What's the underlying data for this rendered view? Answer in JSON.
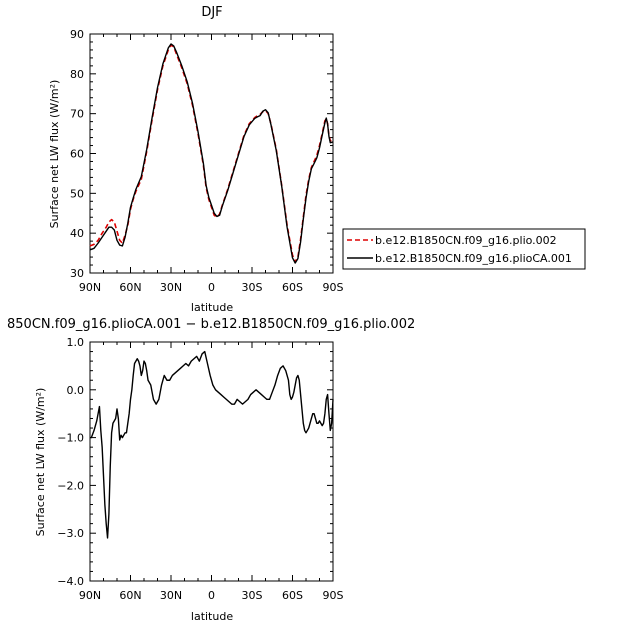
{
  "chart_data": [
    {
      "type": "line",
      "title": "DJF",
      "xlabel": "latitude",
      "ylabel": "Surface net LW flux (W/m²)",
      "xlim": [
        90,
        -90
      ],
      "ylim": [
        30,
        90
      ],
      "x_ticks": [
        {
          "value": 90,
          "label": "90N"
        },
        {
          "value": 60,
          "label": "60N"
        },
        {
          "value": 30,
          "label": "30N"
        },
        {
          "value": 0,
          "label": "0"
        },
        {
          "value": -30,
          "label": "30S"
        },
        {
          "value": -60,
          "label": "60S"
        },
        {
          "value": -90,
          "label": "90S"
        }
      ],
      "y_ticks": [
        {
          "value": 30,
          "label": "30"
        },
        {
          "value": 40,
          "label": "40"
        },
        {
          "value": 50,
          "label": "50"
        },
        {
          "value": 60,
          "label": "60"
        },
        {
          "value": 70,
          "label": "70"
        },
        {
          "value": 80,
          "label": "80"
        },
        {
          "value": 90,
          "label": "90"
        }
      ],
      "legend": "right",
      "series": [
        {
          "name": "b.e12.B1850CN.f09_g16.plio.002",
          "color": "#dd0000",
          "dash": "dashed",
          "x": [
            90,
            87,
            84,
            81,
            78,
            76,
            74,
            72,
            70,
            68,
            66,
            64,
            62,
            60,
            58,
            56,
            52,
            48,
            44,
            40,
            36,
            32,
            30,
            28,
            26,
            22,
            18,
            14,
            10,
            6,
            4,
            2,
            0,
            -2,
            -4,
            -6,
            -8,
            -12,
            -16,
            -20,
            -24,
            -28,
            -32,
            -34,
            -36,
            -38,
            -40,
            -42,
            -44,
            -48,
            -52,
            -56,
            -60,
            -62,
            -64,
            -66,
            -68,
            -70,
            -72,
            -74,
            -76,
            -78,
            -80,
            -82,
            -84,
            -85,
            -86,
            -87,
            -88,
            -90
          ],
          "y": [
            36.8,
            37.2,
            38.2,
            40.0,
            41.5,
            42.8,
            43.4,
            42.8,
            40.5,
            38.2,
            37.5,
            39.5,
            42.0,
            46.0,
            48.5,
            50.5,
            53.5,
            60.5,
            68.5,
            76.0,
            82.0,
            86.0,
            87.2,
            86.8,
            85.0,
            81.5,
            77.5,
            72.0,
            65.0,
            57.0,
            51.5,
            48.5,
            46.5,
            44.5,
            44.0,
            44.8,
            47.0,
            51.0,
            55.5,
            60.0,
            64.5,
            67.5,
            69.0,
            69.5,
            69.8,
            70.5,
            70.8,
            70.0,
            67.5,
            61.0,
            52.0,
            42.0,
            34.5,
            32.8,
            34.0,
            38.5,
            44.0,
            49.5,
            53.5,
            56.5,
            58.0,
            59.5,
            62.0,
            65.0,
            68.2,
            68.7,
            67.5,
            64.5,
            63.2,
            63.0
          ]
        },
        {
          "name": "b.e12.B1850CN.f09_g16.plioCA.001",
          "color": "#000000",
          "dash": "solid",
          "x": [
            90,
            87,
            84,
            81,
            78,
            76,
            74,
            72,
            70,
            68,
            66,
            64,
            62,
            60,
            58,
            56,
            52,
            48,
            44,
            40,
            36,
            32,
            30,
            28,
            26,
            22,
            18,
            14,
            10,
            6,
            4,
            2,
            0,
            -2,
            -4,
            -6,
            -8,
            -12,
            -16,
            -20,
            -24,
            -28,
            -32,
            -34,
            -36,
            -38,
            -40,
            -42,
            -44,
            -48,
            -52,
            -56,
            -60,
            -62,
            -64,
            -66,
            -68,
            -70,
            -72,
            -74,
            -76,
            -78,
            -80,
            -82,
            -84,
            -85,
            -86,
            -87,
            -88,
            -90
          ],
          "y": [
            35.8,
            36.2,
            37.5,
            39.0,
            40.5,
            41.5,
            41.5,
            40.8,
            38.2,
            37.0,
            36.8,
            39.0,
            42.5,
            46.5,
            48.8,
            51.0,
            54.2,
            61.0,
            69.0,
            76.5,
            82.5,
            86.5,
            87.5,
            87.0,
            85.5,
            82.0,
            78.0,
            72.5,
            65.5,
            57.5,
            52.0,
            49.0,
            47.0,
            45.0,
            44.2,
            44.5,
            46.8,
            50.7,
            55.2,
            59.7,
            64.2,
            67.2,
            68.8,
            69.2,
            69.5,
            70.6,
            71.0,
            70.2,
            67.3,
            60.7,
            51.8,
            41.5,
            33.8,
            32.5,
            33.6,
            37.8,
            43.5,
            48.8,
            53.0,
            56.2,
            57.5,
            58.9,
            61.4,
            64.6,
            67.7,
            68.9,
            67.4,
            64.3,
            62.7,
            62.9
          ]
        }
      ]
    },
    {
      "type": "line",
      "title": "850CN.f09_g16.plioCA.001 − b.e12.B1850CN.f09_g16.plio.002",
      "xlabel": "latitude",
      "ylabel": "Surface net LW flux (W/m²)",
      "xlim": [
        90,
        -90
      ],
      "ylim": [
        -4.0,
        1.0
      ],
      "x_ticks": [
        {
          "value": 90,
          "label": "90N"
        },
        {
          "value": 60,
          "label": "60N"
        },
        {
          "value": 30,
          "label": "30N"
        },
        {
          "value": 0,
          "label": "0"
        },
        {
          "value": -30,
          "label": "30S"
        },
        {
          "value": -60,
          "label": "60S"
        },
        {
          "value": -90,
          "label": "90S"
        }
      ],
      "y_ticks": [
        {
          "value": -4.0,
          "label": "−4.0"
        },
        {
          "value": -3.0,
          "label": "−3.0"
        },
        {
          "value": -2.0,
          "label": "−2.0"
        },
        {
          "value": -1.0,
          "label": "−1.0"
        },
        {
          "value": 0.0,
          "label": "0.0"
        },
        {
          "value": 1.0,
          "label": "1.0"
        }
      ],
      "series": [
        {
          "name": "",
          "color": "#000000",
          "dash": "solid",
          "x": [
            90,
            89,
            87,
            85,
            83,
            82,
            81,
            80,
            79,
            78,
            77,
            76,
            75,
            74,
            73,
            72,
            71,
            70,
            69,
            68,
            67,
            66,
            65,
            64,
            63,
            62,
            61,
            60,
            59,
            58,
            57,
            56,
            55,
            54,
            53,
            52,
            51,
            50,
            49,
            48,
            47,
            45,
            43,
            41,
            39,
            37,
            35,
            33,
            31,
            29,
            27,
            25,
            23,
            21,
            19,
            17,
            15,
            13,
            11,
            9,
            7,
            5,
            3,
            1,
            -1,
            -3,
            -5,
            -7,
            -9,
            -11,
            -13,
            -15,
            -17,
            -19,
            -21,
            -23,
            -25,
            -27,
            -29,
            -31,
            -33,
            -35,
            -37,
            -39,
            -41,
            -43,
            -45,
            -47,
            -49,
            -51,
            -53,
            -55,
            -57,
            -58,
            -59,
            -60,
            -61,
            -62,
            -63,
            -64,
            -65,
            -66,
            -67,
            -68,
            -69,
            -70,
            -71,
            -72,
            -73,
            -74,
            -75,
            -76,
            -77,
            -78,
            -79,
            -80,
            -81,
            -82,
            -83,
            -84,
            -85,
            -86,
            -87,
            -88,
            -89,
            -90
          ],
          "y": [
            -1.0,
            -1.0,
            -0.85,
            -0.65,
            -0.35,
            -0.85,
            -1.2,
            -1.8,
            -2.4,
            -2.8,
            -3.1,
            -2.6,
            -1.6,
            -0.9,
            -0.7,
            -0.65,
            -0.6,
            -0.4,
            -0.6,
            -1.05,
            -0.95,
            -1.0,
            -0.95,
            -0.9,
            -0.9,
            -0.7,
            -0.5,
            -0.2,
            0.0,
            0.3,
            0.55,
            0.6,
            0.65,
            0.6,
            0.5,
            0.3,
            0.4,
            0.6,
            0.55,
            0.4,
            0.2,
            0.1,
            -0.2,
            -0.3,
            -0.2,
            0.1,
            0.3,
            0.2,
            0.2,
            0.3,
            0.35,
            0.4,
            0.45,
            0.5,
            0.55,
            0.5,
            0.6,
            0.65,
            0.7,
            0.6,
            0.75,
            0.8,
            0.55,
            0.3,
            0.1,
            0.0,
            -0.05,
            -0.1,
            -0.15,
            -0.2,
            -0.25,
            -0.3,
            -0.3,
            -0.2,
            -0.25,
            -0.3,
            -0.25,
            -0.2,
            -0.1,
            -0.05,
            0.0,
            -0.05,
            -0.1,
            -0.15,
            -0.2,
            -0.2,
            -0.05,
            0.1,
            0.3,
            0.45,
            0.5,
            0.4,
            0.2,
            -0.1,
            -0.2,
            -0.15,
            -0.05,
            0.1,
            0.25,
            0.3,
            0.2,
            -0.1,
            -0.4,
            -0.7,
            -0.85,
            -0.9,
            -0.85,
            -0.8,
            -0.7,
            -0.6,
            -0.5,
            -0.5,
            -0.6,
            -0.7,
            -0.7,
            -0.65,
            -0.7,
            -0.75,
            -0.7,
            -0.5,
            -0.2,
            -0.1,
            -0.5,
            -0.85,
            -0.7,
            -0.2
          ]
        }
      ]
    }
  ]
}
